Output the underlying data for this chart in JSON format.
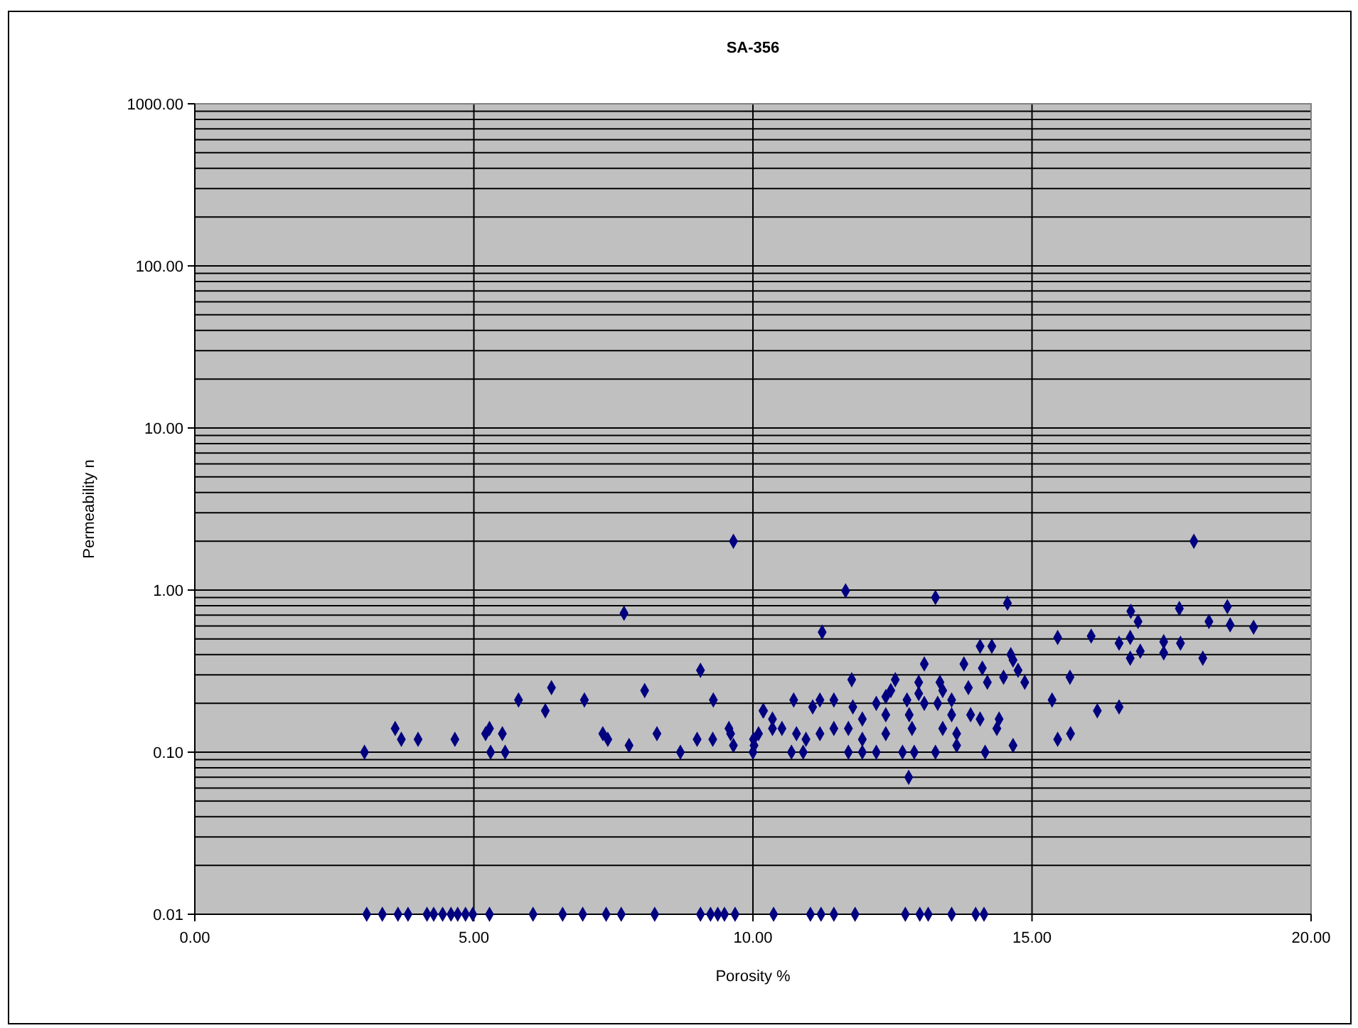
{
  "chart_data": {
    "type": "scatter",
    "title": "SA-356",
    "xlabel": "Porosity %",
    "ylabel": "Permeability n",
    "log": "y",
    "grid": true,
    "marker": "diamond",
    "xlim": [
      0,
      20
    ],
    "xticks": [
      {
        "value": 0,
        "label": "0.00"
      },
      {
        "value": 5,
        "label": "5.00"
      },
      {
        "value": 10,
        "label": "10.00"
      },
      {
        "value": 15,
        "label": "15.00"
      },
      {
        "value": 20,
        "label": "20.00"
      }
    ],
    "ylim": [
      0.01,
      1000
    ],
    "yticks": [
      {
        "value": 0.01,
        "label": "0.01"
      },
      {
        "value": 0.02,
        "label": null
      },
      {
        "value": 0.03,
        "label": null
      },
      {
        "value": 0.04,
        "label": null
      },
      {
        "value": 0.05,
        "label": null
      },
      {
        "value": 0.06,
        "label": null
      },
      {
        "value": 0.07,
        "label": null
      },
      {
        "value": 0.08,
        "label": null
      },
      {
        "value": 0.09,
        "label": null
      },
      {
        "value": 0.1,
        "label": "0.10"
      },
      {
        "value": 0.2,
        "label": null
      },
      {
        "value": 0.3,
        "label": null
      },
      {
        "value": 0.4,
        "label": null
      },
      {
        "value": 0.5,
        "label": null
      },
      {
        "value": 0.6,
        "label": null
      },
      {
        "value": 0.7,
        "label": null
      },
      {
        "value": 0.8,
        "label": null
      },
      {
        "value": 0.9,
        "label": null
      },
      {
        "value": 1,
        "label": "1.00"
      },
      {
        "value": 2,
        "label": null
      },
      {
        "value": 3,
        "label": null
      },
      {
        "value": 4,
        "label": null
      },
      {
        "value": 5,
        "label": null
      },
      {
        "value": 6,
        "label": null
      },
      {
        "value": 7,
        "label": null
      },
      {
        "value": 8,
        "label": null
      },
      {
        "value": 9,
        "label": null
      },
      {
        "value": 10,
        "label": "10.00"
      },
      {
        "value": 20,
        "label": null
      },
      {
        "value": 30,
        "label": null
      },
      {
        "value": 40,
        "label": null
      },
      {
        "value": 50,
        "label": null
      },
      {
        "value": 60,
        "label": null
      },
      {
        "value": 70,
        "label": null
      },
      {
        "value": 80,
        "label": null
      },
      {
        "value": 90,
        "label": null
      },
      {
        "value": 100,
        "label": "100.00"
      },
      {
        "value": 200,
        "label": null
      },
      {
        "value": 300,
        "label": null
      },
      {
        "value": 400,
        "label": null
      },
      {
        "value": 500,
        "label": null
      },
      {
        "value": 600,
        "label": null
      },
      {
        "value": 700,
        "label": null
      },
      {
        "value": 800,
        "label": null
      },
      {
        "value": 900,
        "label": null
      },
      {
        "value": 1000,
        "label": "1000.00"
      }
    ],
    "series": [
      {
        "color": "#000080",
        "x": [
          3.08,
          3.36,
          3.64,
          3.82,
          4.16,
          4.28,
          4.44,
          4.59,
          4.71,
          4.85,
          4.98,
          5.28,
          6.06,
          6.59,
          6.95,
          7.37,
          7.64,
          8.24,
          9.06,
          9.24,
          9.37,
          9.49,
          9.68,
          10.37,
          11.03,
          11.22,
          11.45,
          11.83,
          12.73,
          12.99,
          13.14,
          13.56,
          13.99,
          14.14,
          9.65,
          7.69,
          9.06,
          9.29,
          6.39,
          5.8,
          6.28,
          6.98,
          8.06,
          3.59,
          3.7,
          4.0,
          4.66,
          3.04,
          5.21,
          5.28,
          5.51,
          5.3,
          5.56,
          7.31,
          7.4,
          7.78,
          8.28,
          8.7,
          9.0,
          9.28,
          9.57,
          9.6,
          9.65,
          10.01,
          10.0,
          10.18,
          10.35,
          11.66,
          13.27,
          14.56,
          11.24,
          14.07,
          14.28,
          14.62,
          14.66,
          13.78,
          13.07,
          14.11,
          14.75,
          11.77,
          12.55,
          12.97,
          13.35,
          14.2,
          14.49,
          14.87,
          13.86,
          13.4,
          12.47,
          12.97,
          10.73,
          11.2,
          11.45,
          11.07,
          12.21,
          12.38,
          12.76,
          13.07,
          13.31,
          13.56,
          11.79,
          10.19,
          10.35,
          10.52,
          10.78,
          11.96,
          12.38,
          12.8,
          13.56,
          13.9,
          14.07,
          14.41,
          11.71,
          11.45,
          11.2,
          10.95,
          11.96,
          12.38,
          12.85,
          13.4,
          13.65,
          14.37,
          10.1,
          10.02,
          10.69,
          10.9,
          11.71,
          11.96,
          12.21,
          12.68,
          12.89,
          13.27,
          13.65,
          14.16,
          14.66,
          12.79,
          15.46,
          16.06,
          16.77,
          16.9,
          17.64,
          18.17,
          18.5,
          18.55,
          18.97,
          16.56,
          16.76,
          16.94,
          16.76,
          17.36,
          17.36,
          17.66,
          18.06,
          15.68,
          15.36,
          16.17,
          16.56,
          15.46,
          15.69,
          17.9
        ],
        "values": [
          0.01,
          0.01,
          0.01,
          0.01,
          0.01,
          0.01,
          0.01,
          0.01,
          0.01,
          0.01,
          0.01,
          0.01,
          0.01,
          0.01,
          0.01,
          0.01,
          0.01,
          0.01,
          0.01,
          0.01,
          0.01,
          0.01,
          0.01,
          0.01,
          0.01,
          0.01,
          0.01,
          0.01,
          0.01,
          0.01,
          0.01,
          0.01,
          0.01,
          0.01,
          2.0,
          0.72,
          0.32,
          0.21,
          0.25,
          0.21,
          0.18,
          0.21,
          0.24,
          0.14,
          0.12,
          0.12,
          0.12,
          0.1,
          0.13,
          0.14,
          0.13,
          0.1,
          0.1,
          0.13,
          0.12,
          0.11,
          0.13,
          0.1,
          0.12,
          0.12,
          0.14,
          0.13,
          0.11,
          0.12,
          0.1,
          0.18,
          0.14,
          0.99,
          0.9,
          0.83,
          0.55,
          0.45,
          0.45,
          0.4,
          0.37,
          0.35,
          0.35,
          0.33,
          0.32,
          0.28,
          0.28,
          0.27,
          0.27,
          0.27,
          0.29,
          0.27,
          0.25,
          0.24,
          0.24,
          0.23,
          0.21,
          0.21,
          0.21,
          0.19,
          0.2,
          0.22,
          0.21,
          0.2,
          0.2,
          0.21,
          0.19,
          0.18,
          0.16,
          0.14,
          0.13,
          0.16,
          0.17,
          0.17,
          0.17,
          0.17,
          0.16,
          0.16,
          0.14,
          0.14,
          0.13,
          0.12,
          0.12,
          0.13,
          0.14,
          0.14,
          0.13,
          0.14,
          0.13,
          0.11,
          0.1,
          0.1,
          0.1,
          0.1,
          0.1,
          0.1,
          0.1,
          0.1,
          0.11,
          0.1,
          0.11,
          0.07,
          0.51,
          0.52,
          0.74,
          0.64,
          0.77,
          0.64,
          0.79,
          0.61,
          0.59,
          0.47,
          0.51,
          0.42,
          0.38,
          0.48,
          0.41,
          0.47,
          0.38,
          0.29,
          0.21,
          0.18,
          0.19,
          0.12,
          0.13,
          2.0
        ]
      }
    ]
  }
}
